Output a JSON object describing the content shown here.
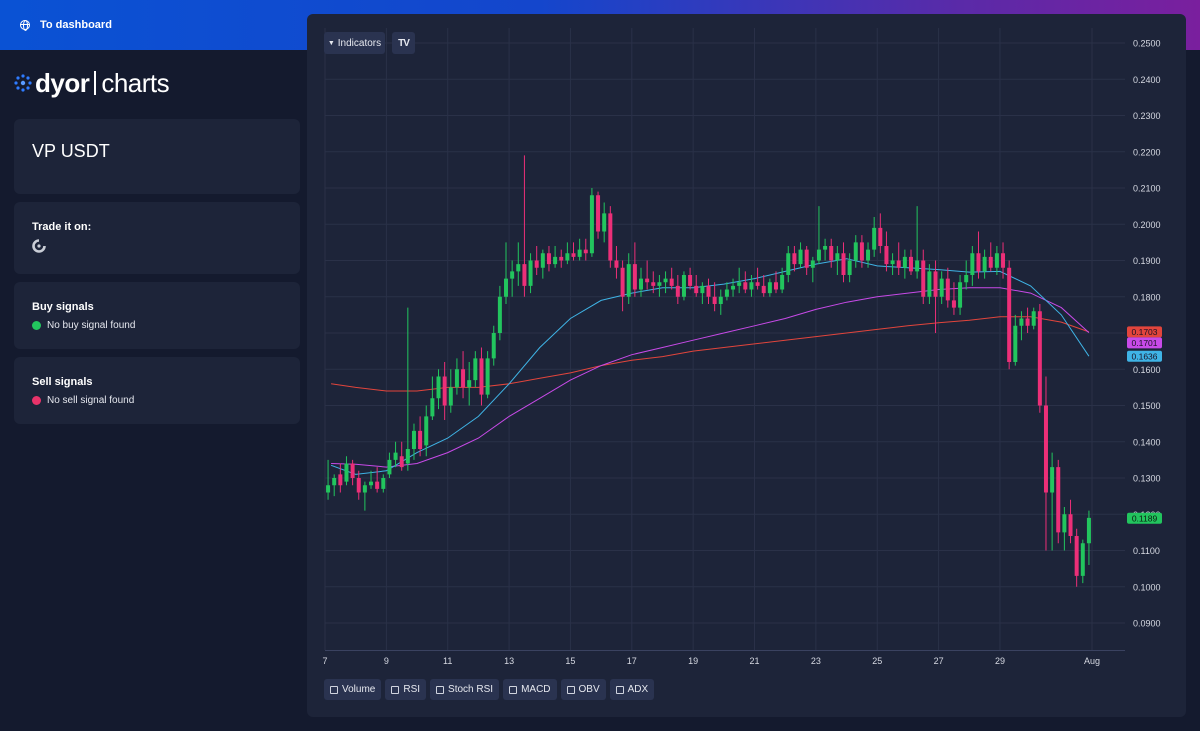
{
  "topbar": {
    "dashboard_link": "To dashboard"
  },
  "logo": {
    "word1": "dyor",
    "word2": "charts"
  },
  "pair_card": {
    "symbol": "VP USDT"
  },
  "trade_card": {
    "title": "Trade it on:"
  },
  "buy_card": {
    "title": "Buy signals",
    "status": "No buy signal found",
    "dot_color": "#22c55e"
  },
  "sell_card": {
    "title": "Sell signals",
    "status": "No sell signal found",
    "dot_color": "#e8336a"
  },
  "toolbar": {
    "indicators_label": "Indicators",
    "tv_logo": "TV"
  },
  "indicator_toggles": [
    {
      "label": "Volume"
    },
    {
      "label": "RSI"
    },
    {
      "label": "Stoch RSI"
    },
    {
      "label": "MACD"
    },
    {
      "label": "OBV"
    },
    {
      "label": "ADX"
    }
  ],
  "colors": {
    "up": "#22c55e",
    "down": "#ec2f78",
    "ma_blue": "#3fb4e6",
    "ma_magenta": "#c84ae8",
    "ma_red": "#e2453c",
    "grid": "#2a3148",
    "axis_text": "#d6d9e2"
  },
  "chart_data": {
    "type": "candlestick",
    "yaxis_ticks": [
      "0.2500",
      "0.2400",
      "0.2300",
      "0.2200",
      "0.2100",
      "0.2000",
      "0.1900",
      "0.1800",
      "0.1700",
      "0.1600",
      "0.1500",
      "0.1400",
      "0.1300",
      "0.1200",
      "0.1100",
      "0.1000",
      "0.0900"
    ],
    "ylim": [
      0.0865,
      0.2535
    ],
    "xaxis_ticks": [
      {
        "label": "7",
        "day": 7
      },
      {
        "label": "9",
        "day": 9
      },
      {
        "label": "11",
        "day": 11
      },
      {
        "label": "13",
        "day": 13
      },
      {
        "label": "15",
        "day": 15
      },
      {
        "label": "17",
        "day": 17
      },
      {
        "label": "19",
        "day": 19
      },
      {
        "label": "21",
        "day": 21
      },
      {
        "label": "23",
        "day": 23
      },
      {
        "label": "25",
        "day": 25
      },
      {
        "label": "27",
        "day": 27
      },
      {
        "label": "29",
        "day": 29
      },
      {
        "label": "Aug",
        "day": 32
      }
    ],
    "price_labels": [
      {
        "value": "0.1703",
        "price": 0.1703,
        "color": "#e2453c"
      },
      {
        "value": "0.1701",
        "price": 0.1701,
        "color": "#c84ae8"
      },
      {
        "value": "0.1636",
        "price": 0.1636,
        "color": "#3fb4e6"
      },
      {
        "value": "0.1189",
        "price": 0.1189,
        "color": "#22c55e"
      }
    ],
    "ma_blue": [
      [
        7.2,
        0.1335
      ],
      [
        8,
        0.131
      ],
      [
        9,
        0.132
      ],
      [
        10,
        0.137
      ],
      [
        11,
        0.141
      ],
      [
        12,
        0.147
      ],
      [
        13,
        0.156
      ],
      [
        14,
        0.166
      ],
      [
        15,
        0.174
      ],
      [
        16,
        0.179
      ],
      [
        17,
        0.181
      ],
      [
        18,
        0.1825
      ],
      [
        19,
        0.1825
      ],
      [
        20,
        0.1835
      ],
      [
        21,
        0.185
      ],
      [
        22,
        0.187
      ],
      [
        23,
        0.189
      ],
      [
        24,
        0.1905
      ],
      [
        25,
        0.1885
      ],
      [
        26,
        0.188
      ],
      [
        27,
        0.1875
      ],
      [
        28,
        0.1868
      ],
      [
        29,
        0.187
      ],
      [
        30,
        0.183
      ],
      [
        31,
        0.175
      ],
      [
        31.9,
        0.1636
      ]
    ],
    "ma_magenta": [
      [
        7.2,
        0.134
      ],
      [
        8,
        0.1338
      ],
      [
        9,
        0.133
      ],
      [
        10,
        0.134
      ],
      [
        11,
        0.137
      ],
      [
        12,
        0.141
      ],
      [
        13,
        0.147
      ],
      [
        14,
        0.152
      ],
      [
        15,
        0.157
      ],
      [
        16,
        0.161
      ],
      [
        17,
        0.164
      ],
      [
        18,
        0.166
      ],
      [
        19,
        0.168
      ],
      [
        20,
        0.17
      ],
      [
        21,
        0.172
      ],
      [
        22,
        0.174
      ],
      [
        23,
        0.1765
      ],
      [
        24,
        0.1785
      ],
      [
        25,
        0.18
      ],
      [
        26,
        0.181
      ],
      [
        27,
        0.182
      ],
      [
        28,
        0.1825
      ],
      [
        29,
        0.1825
      ],
      [
        30,
        0.181
      ],
      [
        31,
        0.177
      ],
      [
        31.9,
        0.1701
      ]
    ],
    "ma_red": [
      [
        7.2,
        0.156
      ],
      [
        8,
        0.155
      ],
      [
        9,
        0.154
      ],
      [
        10,
        0.154
      ],
      [
        11,
        0.155
      ],
      [
        12,
        0.155
      ],
      [
        13,
        0.156
      ],
      [
        14,
        0.1575
      ],
      [
        15,
        0.159
      ],
      [
        16,
        0.161
      ],
      [
        17,
        0.1625
      ],
      [
        18,
        0.1635
      ],
      [
        19,
        0.165
      ],
      [
        20,
        0.166
      ],
      [
        21,
        0.167
      ],
      [
        22,
        0.168
      ],
      [
        23,
        0.169
      ],
      [
        24,
        0.17
      ],
      [
        25,
        0.171
      ],
      [
        26,
        0.172
      ],
      [
        27,
        0.1728
      ],
      [
        28,
        0.1735
      ],
      [
        29,
        0.1745
      ],
      [
        30,
        0.1745
      ],
      [
        31,
        0.173
      ],
      [
        31.9,
        0.1703
      ]
    ],
    "candles": [
      [
        7.1,
        0.126,
        0.135,
        0.124,
        0.128
      ],
      [
        7.3,
        0.128,
        0.131,
        0.125,
        0.13
      ],
      [
        7.5,
        0.131,
        0.134,
        0.126,
        0.128
      ],
      [
        7.7,
        0.129,
        0.136,
        0.128,
        0.134
      ],
      [
        7.9,
        0.134,
        0.135,
        0.128,
        0.13
      ],
      [
        8.1,
        0.13,
        0.132,
        0.124,
        0.126
      ],
      [
        8.3,
        0.126,
        0.129,
        0.121,
        0.128
      ],
      [
        8.5,
        0.128,
        0.132,
        0.127,
        0.129
      ],
      [
        8.7,
        0.129,
        0.133,
        0.126,
        0.127
      ],
      [
        8.9,
        0.127,
        0.131,
        0.126,
        0.13
      ],
      [
        9.1,
        0.131,
        0.137,
        0.13,
        0.135
      ],
      [
        9.3,
        0.135,
        0.14,
        0.133,
        0.137
      ],
      [
        9.5,
        0.136,
        0.14,
        0.132,
        0.133
      ],
      [
        9.7,
        0.134,
        0.177,
        0.132,
        0.138
      ],
      [
        9.9,
        0.138,
        0.145,
        0.135,
        0.143
      ],
      [
        10.1,
        0.143,
        0.147,
        0.136,
        0.138
      ],
      [
        10.3,
        0.139,
        0.15,
        0.136,
        0.147
      ],
      [
        10.5,
        0.147,
        0.158,
        0.146,
        0.152
      ],
      [
        10.7,
        0.152,
        0.16,
        0.149,
        0.158
      ],
      [
        10.9,
        0.158,
        0.162,
        0.146,
        0.15
      ],
      [
        11.1,
        0.15,
        0.16,
        0.148,
        0.155
      ],
      [
        11.3,
        0.155,
        0.163,
        0.153,
        0.16
      ],
      [
        11.5,
        0.16,
        0.165,
        0.152,
        0.155
      ],
      [
        11.7,
        0.155,
        0.162,
        0.15,
        0.157
      ],
      [
        11.9,
        0.157,
        0.165,
        0.155,
        0.163
      ],
      [
        12.1,
        0.163,
        0.166,
        0.15,
        0.153
      ],
      [
        12.3,
        0.153,
        0.165,
        0.152,
        0.163
      ],
      [
        12.5,
        0.163,
        0.172,
        0.161,
        0.17
      ],
      [
        12.7,
        0.17,
        0.183,
        0.168,
        0.18
      ],
      [
        12.9,
        0.18,
        0.195,
        0.178,
        0.185
      ],
      [
        13.1,
        0.185,
        0.19,
        0.18,
        0.187
      ],
      [
        13.3,
        0.187,
        0.195,
        0.183,
        0.189
      ],
      [
        13.5,
        0.189,
        0.219,
        0.18,
        0.183
      ],
      [
        13.7,
        0.183,
        0.192,
        0.181,
        0.19
      ],
      [
        13.9,
        0.19,
        0.194,
        0.186,
        0.188
      ],
      [
        14.1,
        0.188,
        0.193,
        0.185,
        0.192
      ],
      [
        14.3,
        0.192,
        0.194,
        0.187,
        0.189
      ],
      [
        14.5,
        0.189,
        0.194,
        0.188,
        0.191
      ],
      [
        14.7,
        0.191,
        0.193,
        0.188,
        0.19
      ],
      [
        14.9,
        0.19,
        0.195,
        0.189,
        0.192
      ],
      [
        15.1,
        0.192,
        0.195,
        0.19,
        0.191
      ],
      [
        15.3,
        0.191,
        0.196,
        0.19,
        0.193
      ],
      [
        15.5,
        0.193,
        0.196,
        0.19,
        0.192
      ],
      [
        15.7,
        0.192,
        0.21,
        0.191,
        0.208
      ],
      [
        15.9,
        0.208,
        0.209,
        0.196,
        0.198
      ],
      [
        16.1,
        0.198,
        0.206,
        0.195,
        0.203
      ],
      [
        16.3,
        0.203,
        0.205,
        0.188,
        0.19
      ],
      [
        16.5,
        0.19,
        0.194,
        0.185,
        0.188
      ],
      [
        16.7,
        0.188,
        0.19,
        0.176,
        0.18
      ],
      [
        16.9,
        0.18,
        0.192,
        0.178,
        0.189
      ],
      [
        17.1,
        0.189,
        0.195,
        0.18,
        0.182
      ],
      [
        17.3,
        0.182,
        0.188,
        0.18,
        0.185
      ],
      [
        17.5,
        0.185,
        0.19,
        0.182,
        0.184
      ],
      [
        17.7,
        0.184,
        0.187,
        0.181,
        0.183
      ],
      [
        17.9,
        0.183,
        0.186,
        0.18,
        0.184
      ],
      [
        18.1,
        0.184,
        0.187,
        0.181,
        0.185
      ],
      [
        18.3,
        0.185,
        0.188,
        0.182,
        0.183
      ],
      [
        18.5,
        0.183,
        0.186,
        0.178,
        0.18
      ],
      [
        18.7,
        0.18,
        0.187,
        0.179,
        0.186
      ],
      [
        18.9,
        0.186,
        0.188,
        0.182,
        0.183
      ],
      [
        19.1,
        0.183,
        0.186,
        0.18,
        0.181
      ],
      [
        19.3,
        0.181,
        0.184,
        0.178,
        0.183
      ],
      [
        19.5,
        0.183,
        0.185,
        0.178,
        0.18
      ],
      [
        19.7,
        0.18,
        0.184,
        0.176,
        0.178
      ],
      [
        19.9,
        0.178,
        0.182,
        0.175,
        0.18
      ],
      [
        20.1,
        0.18,
        0.184,
        0.179,
        0.182
      ],
      [
        20.3,
        0.182,
        0.185,
        0.18,
        0.183
      ],
      [
        20.5,
        0.183,
        0.188,
        0.181,
        0.184
      ],
      [
        20.7,
        0.184,
        0.187,
        0.181,
        0.182
      ],
      [
        20.9,
        0.182,
        0.186,
        0.18,
        0.184
      ],
      [
        21.1,
        0.184,
        0.188,
        0.182,
        0.183
      ],
      [
        21.3,
        0.183,
        0.186,
        0.18,
        0.181
      ],
      [
        21.5,
        0.181,
        0.185,
        0.18,
        0.184
      ],
      [
        21.7,
        0.184,
        0.187,
        0.181,
        0.182
      ],
      [
        21.9,
        0.182,
        0.188,
        0.181,
        0.186
      ],
      [
        22.1,
        0.186,
        0.194,
        0.184,
        0.192
      ],
      [
        22.3,
        0.192,
        0.194,
        0.187,
        0.189
      ],
      [
        22.5,
        0.189,
        0.195,
        0.188,
        0.193
      ],
      [
        22.7,
        0.193,
        0.194,
        0.186,
        0.188
      ],
      [
        22.9,
        0.188,
        0.191,
        0.184,
        0.19
      ],
      [
        23.1,
        0.19,
        0.205,
        0.189,
        0.193
      ],
      [
        23.3,
        0.193,
        0.196,
        0.19,
        0.194
      ],
      [
        23.5,
        0.194,
        0.196,
        0.188,
        0.19
      ],
      [
        23.7,
        0.19,
        0.194,
        0.186,
        0.192
      ],
      [
        23.9,
        0.192,
        0.195,
        0.184,
        0.186
      ],
      [
        24.1,
        0.186,
        0.192,
        0.184,
        0.19
      ],
      [
        24.3,
        0.19,
        0.197,
        0.188,
        0.195
      ],
      [
        24.5,
        0.195,
        0.197,
        0.188,
        0.19
      ],
      [
        24.7,
        0.19,
        0.195,
        0.188,
        0.193
      ],
      [
        24.9,
        0.193,
        0.202,
        0.191,
        0.199
      ],
      [
        25.1,
        0.199,
        0.203,
        0.192,
        0.194
      ],
      [
        25.3,
        0.194,
        0.198,
        0.187,
        0.189
      ],
      [
        25.5,
        0.189,
        0.192,
        0.186,
        0.19
      ],
      [
        25.7,
        0.19,
        0.195,
        0.186,
        0.188
      ],
      [
        25.9,
        0.188,
        0.193,
        0.185,
        0.191
      ],
      [
        26.1,
        0.191,
        0.193,
        0.186,
        0.187
      ],
      [
        26.3,
        0.187,
        0.205,
        0.185,
        0.19
      ],
      [
        26.5,
        0.19,
        0.193,
        0.178,
        0.18
      ],
      [
        26.7,
        0.18,
        0.189,
        0.178,
        0.187
      ],
      [
        26.9,
        0.187,
        0.19,
        0.17,
        0.18
      ],
      [
        27.1,
        0.18,
        0.187,
        0.178,
        0.185
      ],
      [
        27.3,
        0.185,
        0.188,
        0.177,
        0.179
      ],
      [
        27.5,
        0.179,
        0.184,
        0.175,
        0.177
      ],
      [
        27.7,
        0.177,
        0.186,
        0.175,
        0.184
      ],
      [
        27.9,
        0.184,
        0.19,
        0.182,
        0.186
      ],
      [
        28.1,
        0.186,
        0.194,
        0.183,
        0.192
      ],
      [
        28.3,
        0.192,
        0.198,
        0.185,
        0.187
      ],
      [
        28.5,
        0.187,
        0.193,
        0.185,
        0.191
      ],
      [
        28.7,
        0.191,
        0.195,
        0.187,
        0.188
      ],
      [
        28.9,
        0.188,
        0.194,
        0.186,
        0.192
      ],
      [
        29.1,
        0.192,
        0.195,
        0.185,
        0.188
      ],
      [
        29.3,
        0.188,
        0.19,
        0.16,
        0.162
      ],
      [
        29.5,
        0.162,
        0.175,
        0.161,
        0.172
      ],
      [
        29.7,
        0.172,
        0.176,
        0.168,
        0.174
      ],
      [
        29.9,
        0.174,
        0.177,
        0.17,
        0.172
      ],
      [
        30.1,
        0.172,
        0.177,
        0.171,
        0.176
      ],
      [
        30.3,
        0.176,
        0.178,
        0.148,
        0.15
      ],
      [
        30.5,
        0.15,
        0.158,
        0.11,
        0.126
      ],
      [
        30.7,
        0.126,
        0.137,
        0.11,
        0.133
      ],
      [
        30.9,
        0.133,
        0.135,
        0.112,
        0.115
      ],
      [
        31.1,
        0.115,
        0.122,
        0.11,
        0.12
      ],
      [
        31.3,
        0.12,
        0.124,
        0.112,
        0.114
      ],
      [
        31.5,
        0.114,
        0.116,
        0.1,
        0.103
      ],
      [
        31.7,
        0.103,
        0.113,
        0.101,
        0.112
      ],
      [
        31.9,
        0.112,
        0.121,
        0.106,
        0.119
      ]
    ]
  }
}
